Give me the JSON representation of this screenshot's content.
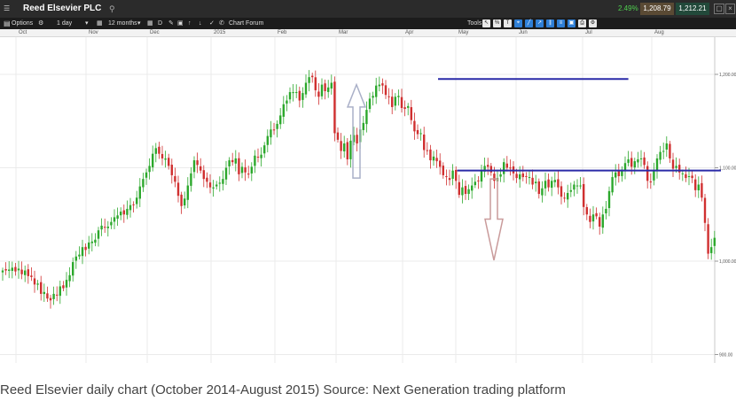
{
  "window": {
    "title": "Reed Elsevier PLC",
    "change": "2.49%",
    "sell_price": "1,208.79",
    "buy_price": "1,212.21"
  },
  "toolbar": {
    "options_label": "Options",
    "interval": "1 day",
    "range": "12 months",
    "d_label": "D",
    "chart_forum_label": "Chart Forum",
    "tools_label": "Tools",
    "tool_icons": [
      "pointer-icon",
      "percent-icon",
      "text-icon",
      "crosshair-icon",
      "draw-line-icon",
      "draw-trend-icon",
      "draw-channel-icon",
      "draw-fib-icon",
      "draw-shape-icon",
      "print-icon",
      "settings-icon"
    ]
  },
  "chart_data": {
    "type": "candlestick",
    "x_labels": [
      "Oct",
      "Nov",
      "Dec",
      "2015",
      "Feb",
      "Mar",
      "Apr",
      "May",
      "Jun",
      "Jul",
      "Aug"
    ],
    "y_ticks": [
      "1,200.00",
      "1,100.00",
      "1,000.00",
      "900.00"
    ],
    "ylim": [
      885,
      1240
    ],
    "colors": {
      "up": "#2ca82c",
      "down": "#d03030",
      "levels": "#2a2aa8",
      "arrow": "#c99b9b",
      "arrow_up": "#aab0c8"
    },
    "levels": [
      {
        "value": 1195,
        "x_start": 140,
        "x_end": 196
      },
      {
        "value": 1097,
        "x_start": 146,
        "x_end": 225
      }
    ],
    "closes": [
      990,
      990,
      991,
      993,
      989,
      992,
      986,
      990,
      984,
      983,
      975,
      976,
      965,
      967,
      960,
      958,
      965,
      964,
      973,
      971,
      980,
      985,
      999,
      1005,
      1007,
      1015,
      1012,
      1020,
      1021,
      1023,
      1033,
      1038,
      1036,
      1037,
      1042,
      1047,
      1049,
      1053,
      1050,
      1056,
      1060,
      1060,
      1068,
      1080,
      1088,
      1095,
      1102,
      1115,
      1121,
      1115,
      1110,
      1110,
      1102,
      1092,
      1085,
      1070,
      1059,
      1067,
      1081,
      1094,
      1108,
      1103,
      1097,
      1088,
      1085,
      1079,
      1079,
      1082,
      1084,
      1088,
      1100,
      1108,
      1106,
      1110,
      1093,
      1101,
      1095,
      1093,
      1101,
      1113,
      1111,
      1114,
      1124,
      1134,
      1141,
      1140,
      1147,
      1156,
      1168,
      1172,
      1181,
      1181,
      1181,
      1172,
      1180,
      1191,
      1197,
      1197,
      1183,
      1176,
      1189,
      1182,
      1186,
      1191,
      1137,
      1130,
      1118,
      1126,
      1109,
      1129,
      1135,
      1126,
      1141,
      1148,
      1162,
      1174,
      1177,
      1188,
      1189,
      1188,
      1178,
      1176,
      1165,
      1176,
      1177,
      1164,
      1163,
      1166,
      1151,
      1139,
      1136,
      1137,
      1119,
      1118,
      1108,
      1112,
      1107,
      1101,
      1092,
      1090,
      1087,
      1097,
      1086,
      1071,
      1079,
      1072,
      1077,
      1081,
      1085,
      1086,
      1097,
      1102,
      1101,
      1095,
      1086,
      1089,
      1093,
      1106,
      1100,
      1100,
      1094,
      1089,
      1093,
      1090,
      1091,
      1090,
      1082,
      1085,
      1072,
      1078,
      1086,
      1079,
      1086,
      1087,
      1079,
      1069,
      1067,
      1073,
      1076,
      1082,
      1081,
      1081,
      1058,
      1050,
      1042,
      1050,
      1048,
      1037,
      1050,
      1056,
      1075,
      1090,
      1095,
      1091,
      1098,
      1105,
      1109,
      1101,
      1107,
      1109,
      1110,
      1103,
      1086,
      1085,
      1097,
      1110,
      1117,
      1118,
      1126,
      1110,
      1099,
      1102,
      1095,
      1094,
      1089,
      1091,
      1089,
      1076,
      1082,
      1068,
      1041,
      1008,
      1015,
      1025
    ]
  },
  "caption": "Reed Elsevier daily chart (October 2014-August 2015) Source: Next Generation trading platform"
}
